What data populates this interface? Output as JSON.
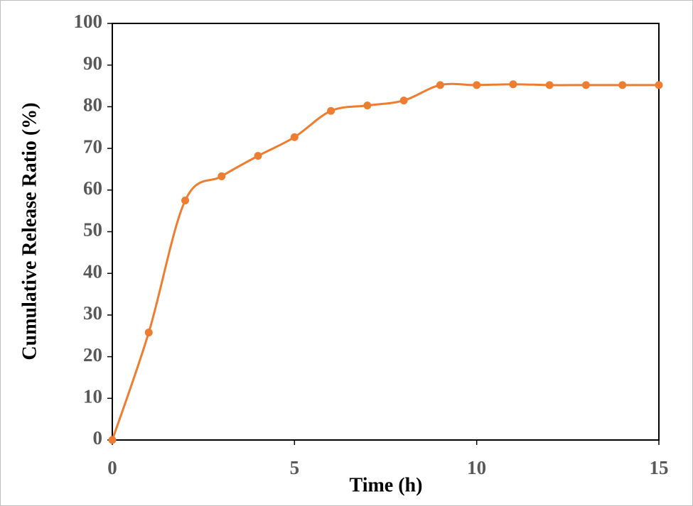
{
  "chart_data": {
    "type": "line",
    "x_label": "Time (h)",
    "y_label": "Cumulative Release Ratio (%)",
    "x": [
      0,
      1,
      2,
      3,
      4,
      5,
      6,
      7,
      8,
      9,
      10,
      11,
      12,
      13,
      14,
      15
    ],
    "series": [
      {
        "color": "#ed7d31",
        "values": [
          0,
          25.8,
          57.5,
          63.3,
          68.2,
          72.7,
          79,
          80.3,
          81.5,
          85.2,
          85.2,
          85.4,
          85.2,
          85.2,
          85.2,
          85.2
        ]
      }
    ],
    "smooth": true,
    "markers": true,
    "xlim": [
      0,
      15
    ],
    "xticks": [
      0,
      5,
      10,
      15
    ],
    "ylim": [
      0,
      100
    ],
    "yticks": [
      0,
      10,
      20,
      30,
      40,
      50,
      60,
      70,
      80,
      90,
      100
    ]
  }
}
